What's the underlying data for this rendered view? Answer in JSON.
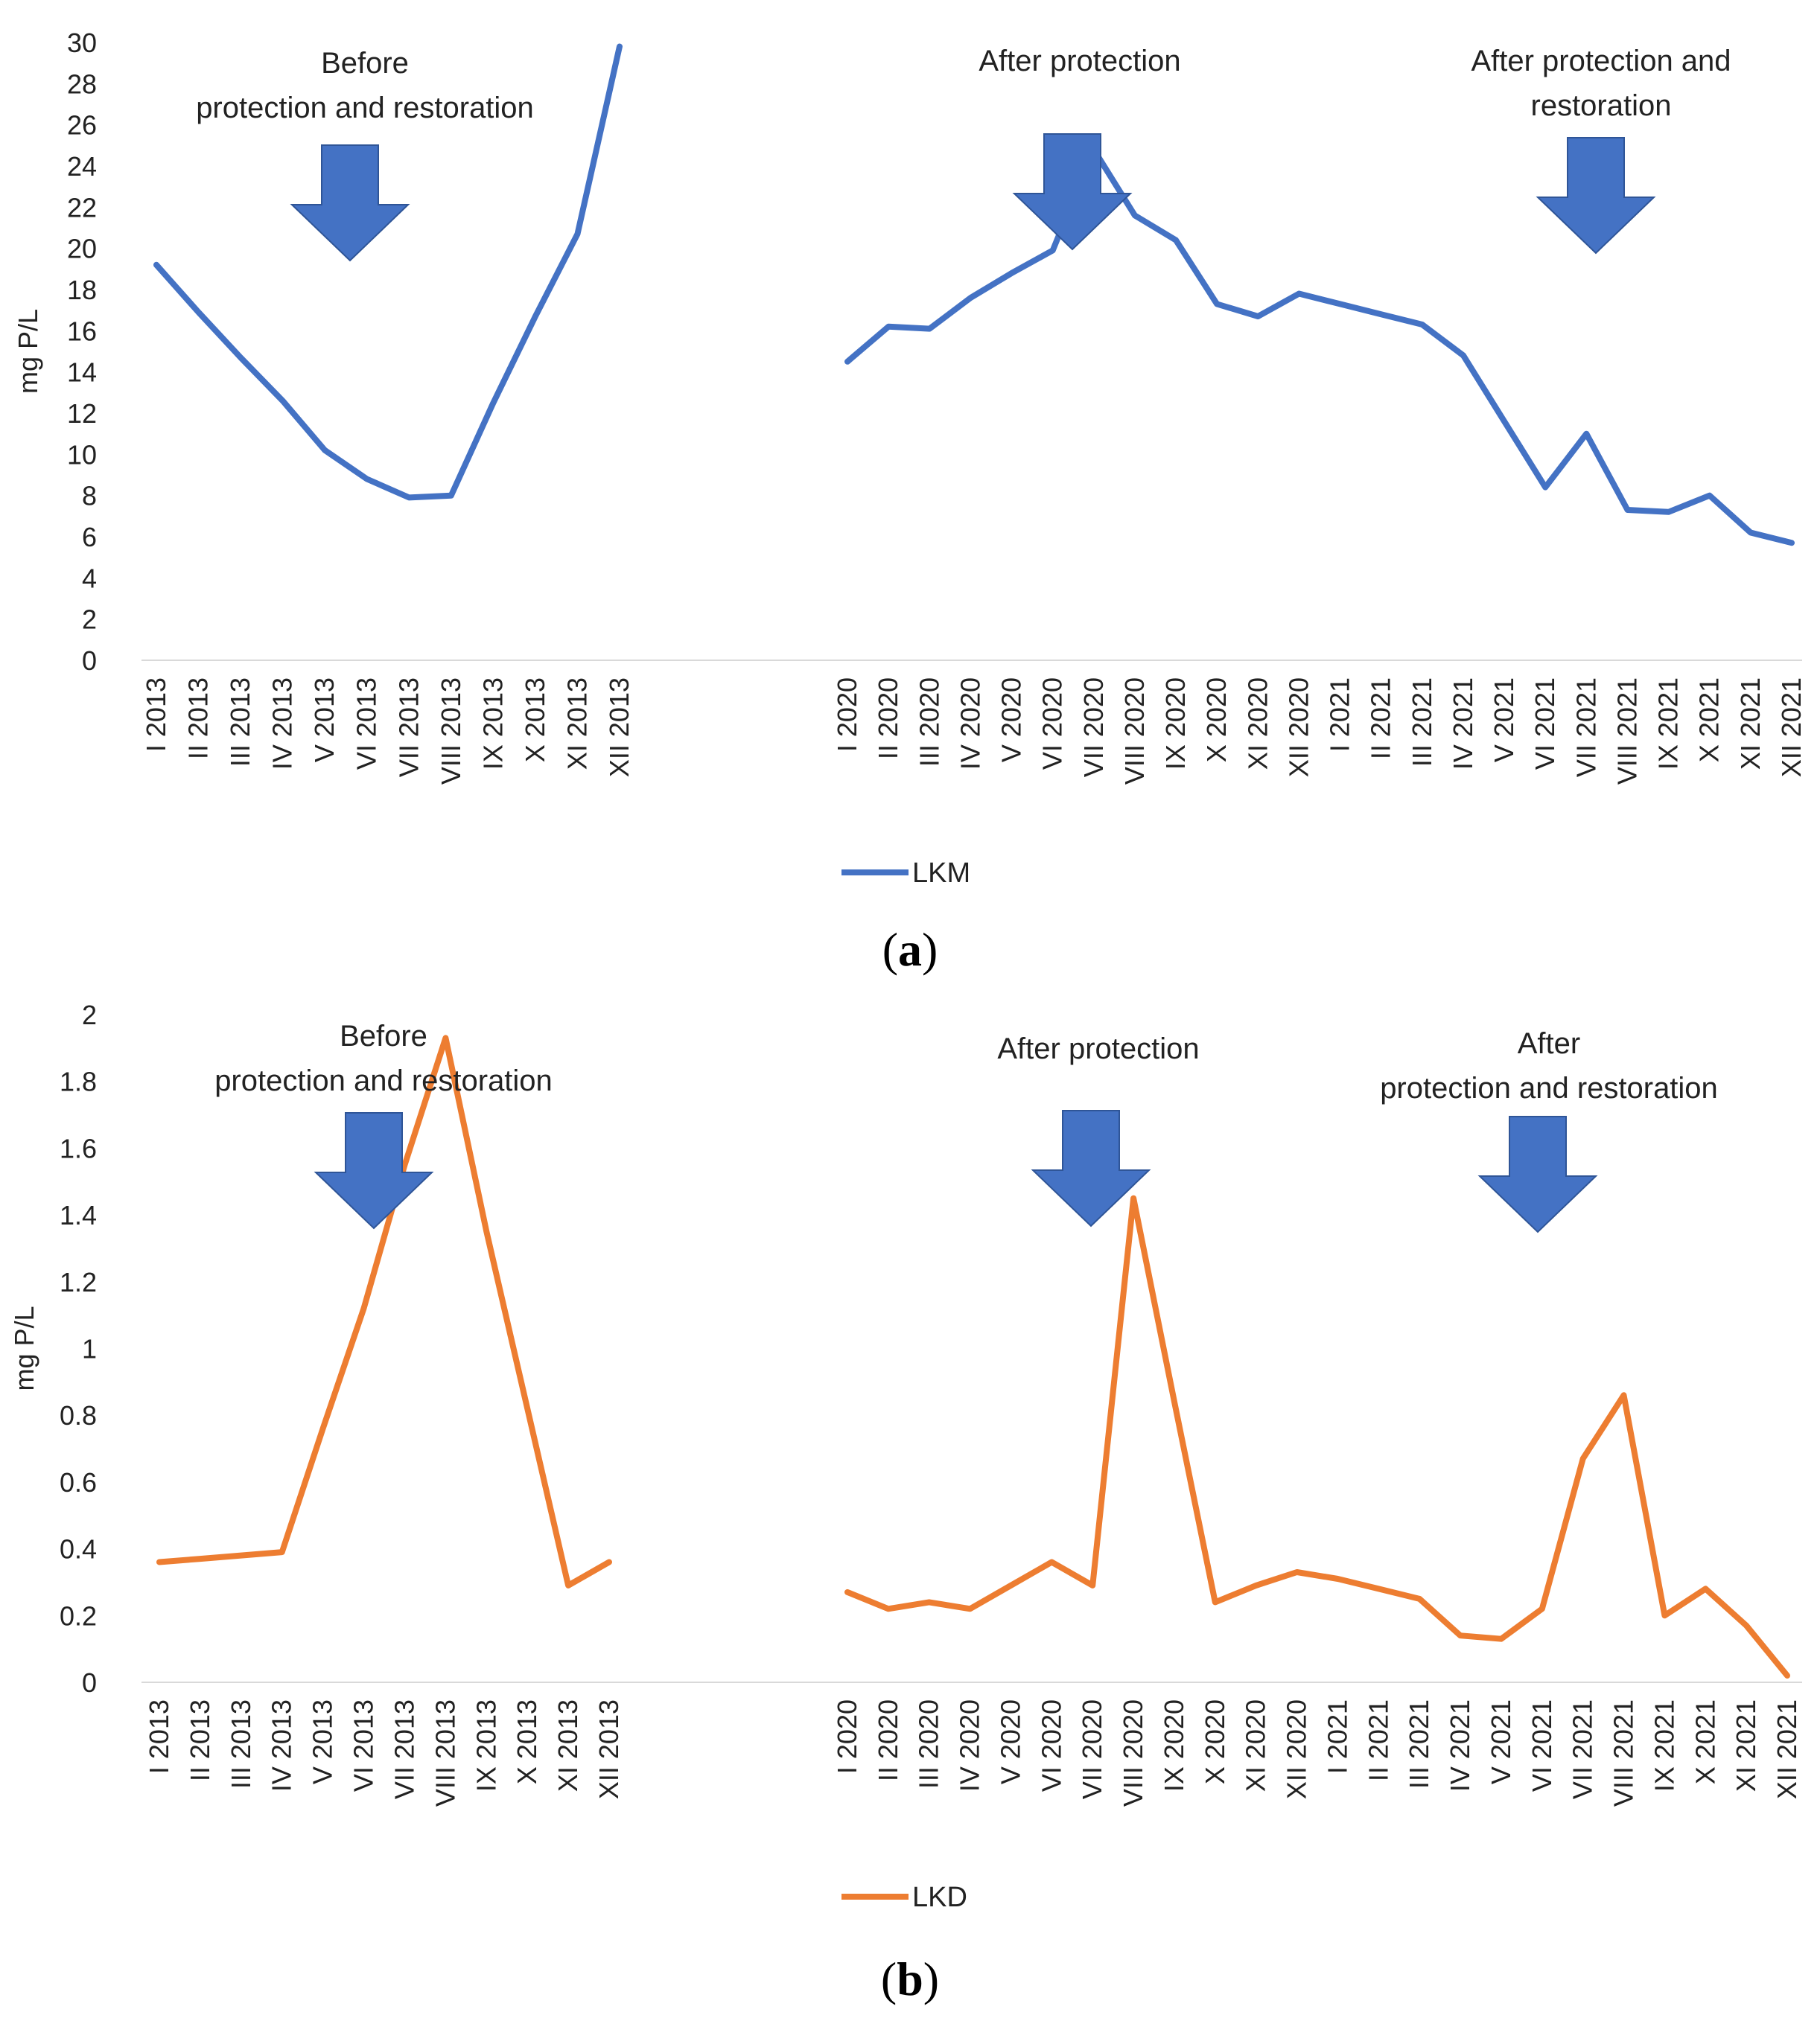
{
  "panels": {
    "a": {
      "caption_open": "(",
      "caption_letter": "a",
      "caption_close": ")"
    },
    "b": {
      "caption_open": "(",
      "caption_letter": "b",
      "caption_close": ")"
    }
  },
  "chart_data": [
    {
      "id": "a",
      "type": "line",
      "ylabel": "mg P/L",
      "ylim": [
        0,
        30
      ],
      "yticks": [
        0,
        2,
        4,
        6,
        8,
        10,
        12,
        14,
        16,
        18,
        20,
        22,
        24,
        26,
        28,
        30
      ],
      "grid": false,
      "legend_position": "bottom-center",
      "categories_2013": [
        "I 2013",
        "II 2013",
        "III 2013",
        "IV 2013",
        "V 2013",
        "VI 2013",
        "VII 2013",
        "VIII 2013",
        "IX 2013",
        "X 2013",
        "XI 2013",
        "XII 2013"
      ],
      "categories_2020_2021": [
        "I 2020",
        "II 2020",
        "III 2020",
        "IV 2020",
        "V 2020",
        "VI 2020",
        "VII 2020",
        "VIII 2020",
        "IX 2020",
        "X 2020",
        "XI 2020",
        "XII 2020",
        "I 2021",
        "II 2021",
        "III 2021",
        "IV 2021",
        "V 2021",
        "VI 2021",
        "VII 2021",
        "VIII 2021",
        "IX 2021",
        "X 2021",
        "XI 2021",
        "XII 2021"
      ],
      "series": [
        {
          "name": "LKM",
          "color": "#4472C4",
          "values_2013": [
            19.2,
            16.9,
            14.7,
            12.6,
            10.2,
            8.8,
            7.9,
            8.0,
            12.5,
            16.7,
            20.7,
            29.8
          ],
          "values_2020_2021": [
            14.5,
            16.2,
            16.1,
            17.6,
            18.8,
            19.9,
            24.8,
            21.6,
            20.4,
            17.3,
            16.7,
            17.8,
            17.3,
            16.8,
            16.3,
            14.8,
            11.6,
            8.4,
            11.0,
            7.3,
            7.2,
            8.0,
            6.2,
            5.7
          ]
        }
      ],
      "annotations": [
        {
          "lines": [
            "Before",
            "protection and restoration"
          ],
          "arrow_at": "V 2013"
        },
        {
          "lines": [
            "After protection"
          ],
          "arrow_at": "VI 2020"
        },
        {
          "lines": [
            "After protection and",
            "restoration"
          ],
          "arrow_at": "VI 2021"
        }
      ]
    },
    {
      "id": "b",
      "type": "line",
      "ylabel": "mg P/L",
      "ylim": [
        0,
        2
      ],
      "yticks": [
        "0",
        "0.2",
        "0.4",
        "0.6",
        "0.8",
        "1",
        "1.2",
        "1.4",
        "1.6",
        "1.8",
        "2"
      ],
      "grid": false,
      "legend_position": "bottom-center",
      "categories_2013": [
        "I 2013",
        "II 2013",
        "III 2013",
        "IV 2013",
        "V 2013",
        "VI 2013",
        "VII 2013",
        "VIII 2013",
        "IX 2013",
        "X 2013",
        "XI 2013",
        "XII 2013"
      ],
      "categories_2020_2021": [
        "I 2020",
        "II 2020",
        "III 2020",
        "IV 2020",
        "V 2020",
        "VI 2020",
        "VII 2020",
        "VIII 2020",
        "IX 2020",
        "X 2020",
        "XI 2020",
        "XII 2020",
        "I 2021",
        "II 2021",
        "III 2021",
        "IV 2021",
        "V 2021",
        "VI 2021",
        "VII 2021",
        "VIII 2021",
        "IX 2021",
        "X 2021",
        "XI 2021",
        "XII 2021"
      ],
      "series": [
        {
          "name": "LKD",
          "color": "#ED7D31",
          "values_2013": [
            0.36,
            0.37,
            0.38,
            0.39,
            0.76,
            1.12,
            1.55,
            1.93,
            1.35,
            0.82,
            0.29,
            0.36
          ],
          "values_2020_2021": [
            0.27,
            0.22,
            0.24,
            0.22,
            0.29,
            0.36,
            0.29,
            1.45,
            0.84,
            0.24,
            0.29,
            0.33,
            0.31,
            0.28,
            0.25,
            0.14,
            0.13,
            0.22,
            0.67,
            0.86,
            0.2,
            0.28,
            0.17,
            0.02
          ]
        }
      ],
      "annotations": [
        {
          "lines": [
            "Before",
            "protection and restoration"
          ],
          "arrow_at": "VI 2013"
        },
        {
          "lines": [
            "After protection"
          ],
          "arrow_at": "VII 2020"
        },
        {
          "lines": [
            "After",
            "protection and restoration"
          ],
          "arrow_at": "VI 2021"
        }
      ]
    }
  ]
}
